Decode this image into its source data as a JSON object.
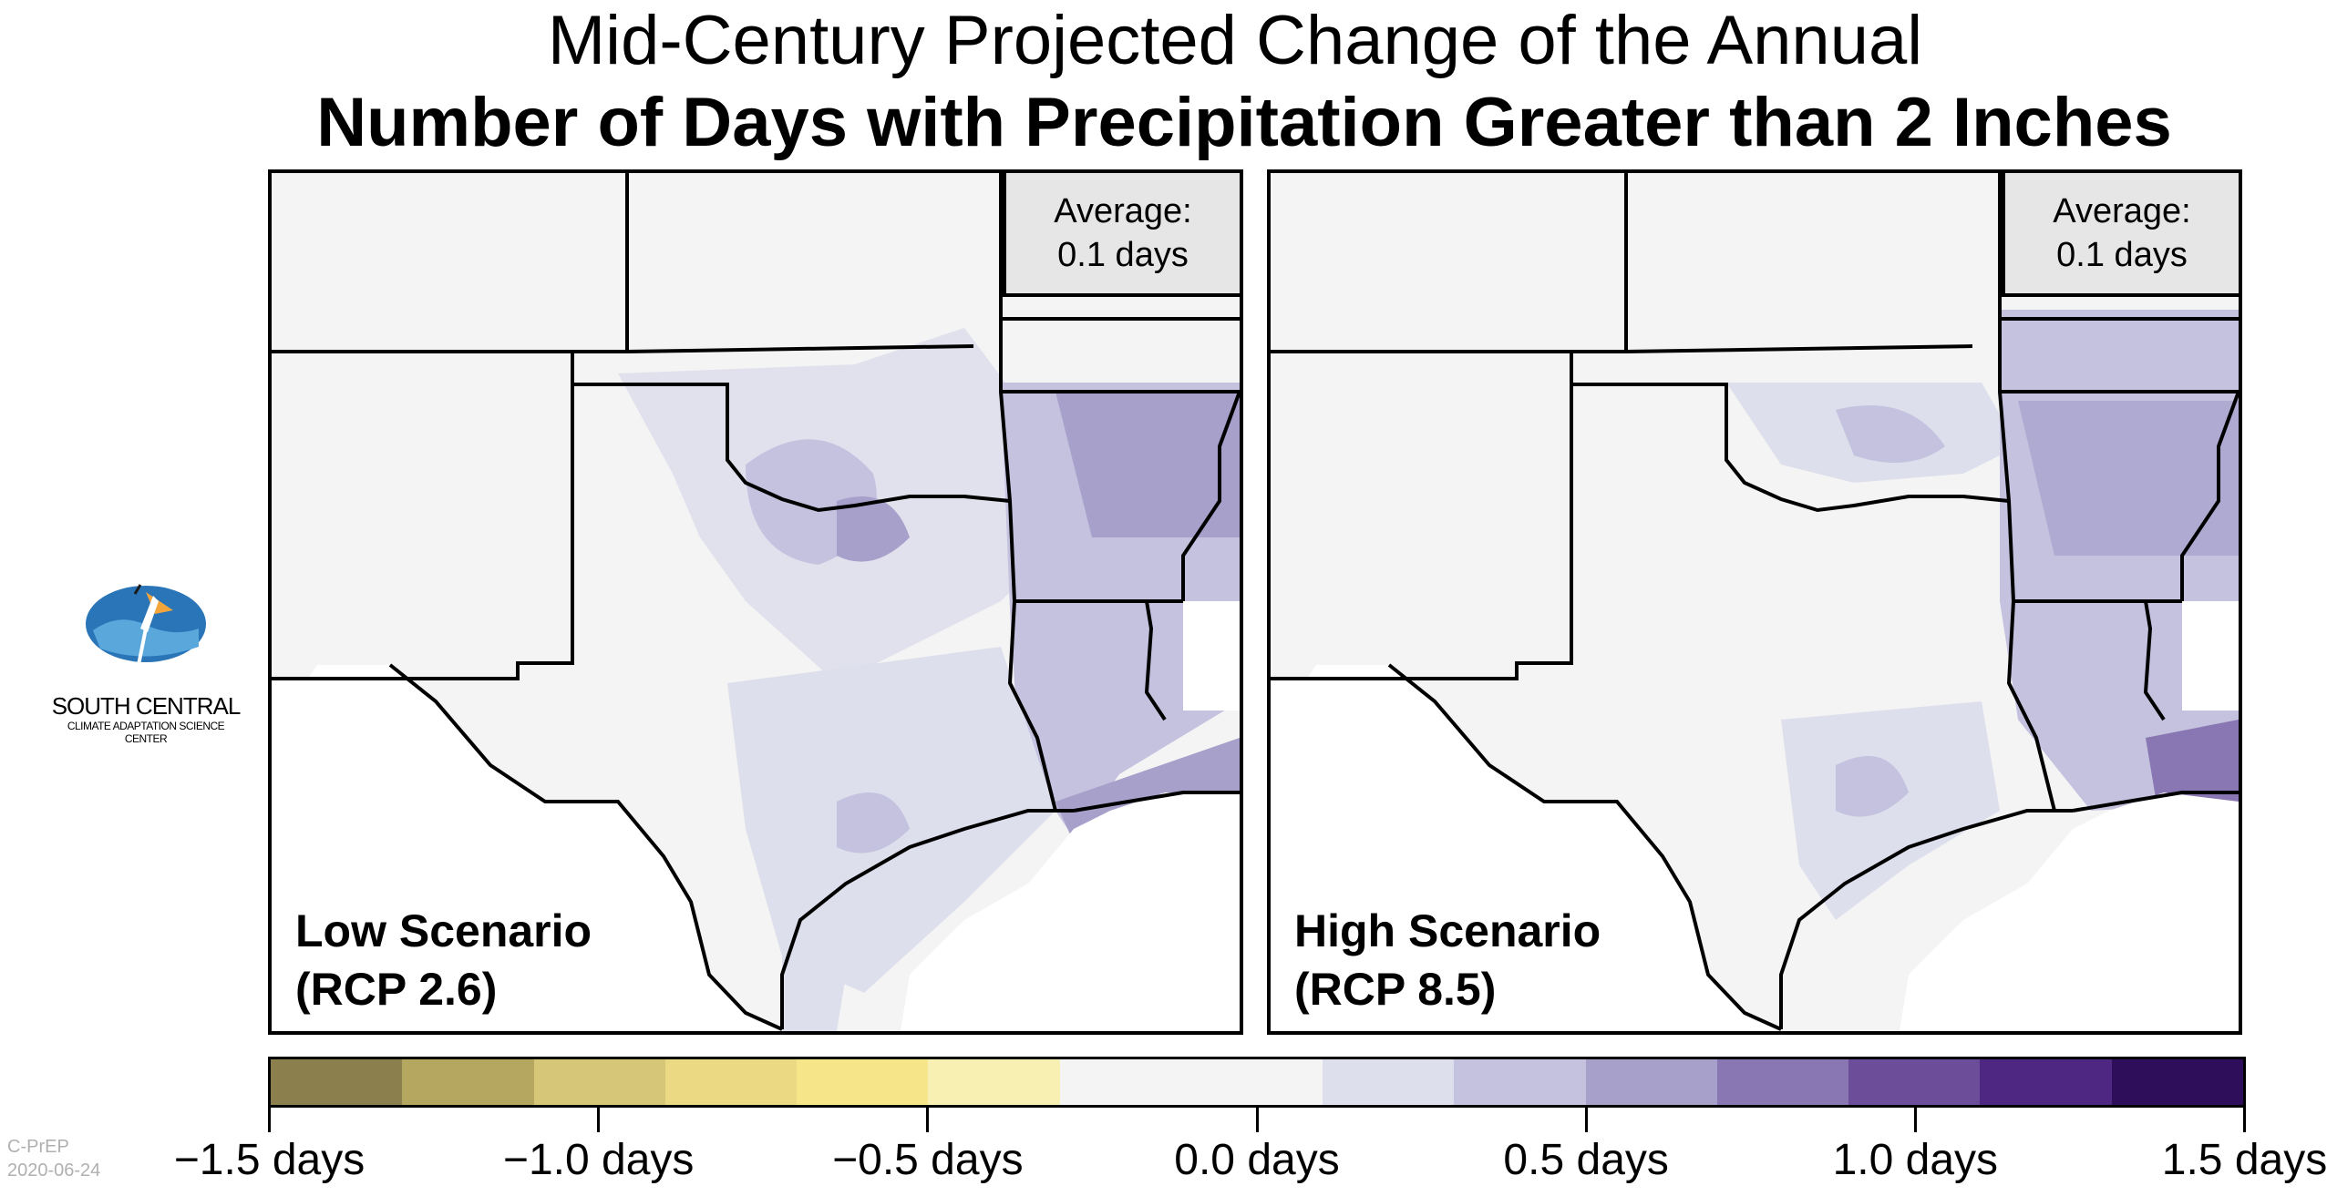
{
  "title": {
    "line1": "Mid-Century Projected Change of the Annual",
    "line2": "Number of Days with Precipitation Greater than 2 Inches"
  },
  "panels": [
    {
      "scenario_line1": "Low Scenario",
      "scenario_line2": "(RCP 2.6)",
      "average_label": "Average:",
      "average_value": "0.1 days"
    },
    {
      "scenario_line1": "High Scenario",
      "scenario_line2": "(RCP 8.5)",
      "average_label": "Average:",
      "average_value": "0.1 days"
    }
  ],
  "logo": {
    "line1": "SOUTH CENTRAL",
    "line2": "CLIMATE ADAPTATION SCIENCE CENTER"
  },
  "colorbar": {
    "colors": [
      "#8b7f4e",
      "#b5a660",
      "#d6c677",
      "#ecd983",
      "#f6e689",
      "#f8efb3",
      "#f4f4f4",
      "#f4f4f4",
      "#dedfec",
      "#c4c2df",
      "#a7a0ca",
      "#8877b2",
      "#6b4d9a",
      "#4e2782",
      "#2e0d5b"
    ],
    "tick_labels": [
      "−1.5 days",
      "−1.0 days",
      "−0.5 days",
      "0.0 days",
      "0.5 days",
      "1.0 days",
      "1.5 days"
    ]
  },
  "credit": {
    "line1": "C-PrEP",
    "line2": "2020-06-24"
  }
}
